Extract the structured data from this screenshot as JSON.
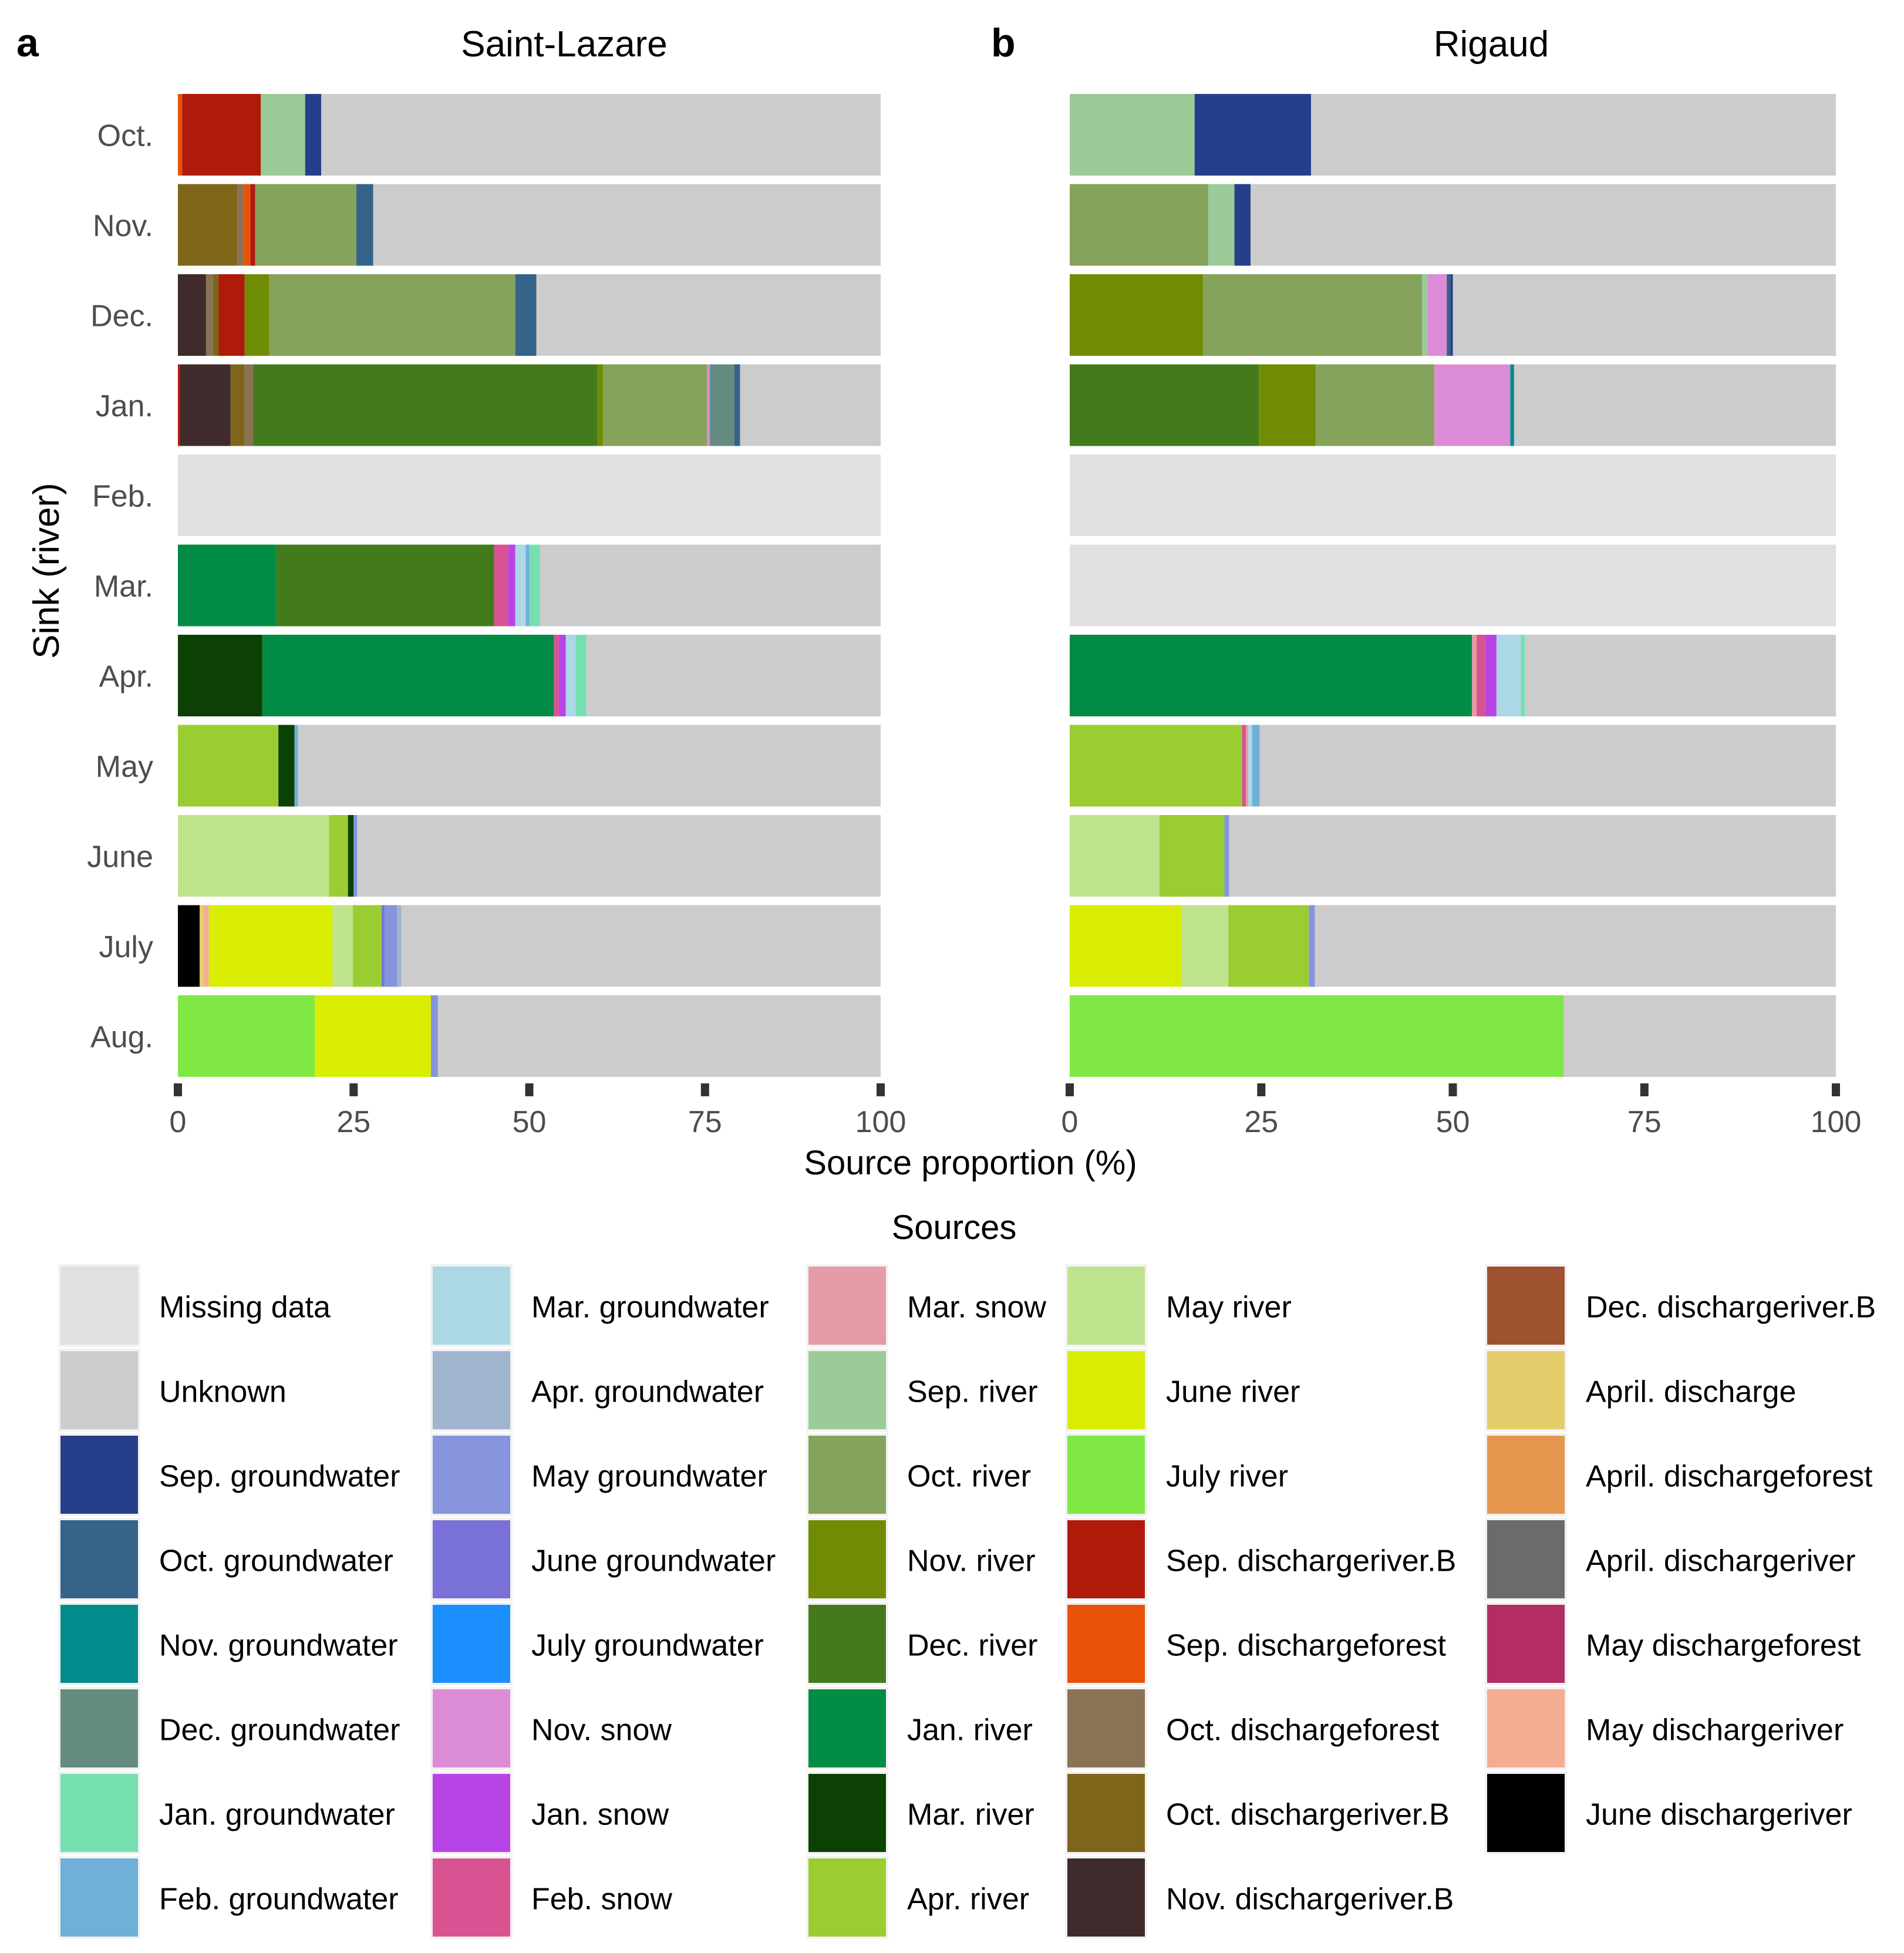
{
  "chart_data": [
    {
      "type": "bar",
      "orientation": "horizontal-stacked",
      "panel": "a",
      "title": "Saint-Lazare",
      "xlabel": "Source proportion (%)",
      "ylabel": "Sink (river)",
      "xlim": [
        0,
        100
      ],
      "xticks": [
        "0",
        "25",
        "50",
        "75",
        "100"
      ],
      "categories": [
        "Oct.",
        "Nov.",
        "Dec.",
        "Jan.",
        "Feb.",
        "Mar.",
        "Apr.",
        "May",
        "June",
        "July",
        "Aug."
      ],
      "rows": [
        {
          "sink": "Oct.",
          "segments": [
            [
              "Sep. dischargeforest",
              0.6
            ],
            [
              "Sep. dischargeriver.B",
              11.2
            ],
            [
              "Sep. river",
              6.3
            ],
            [
              "Sep. groundwater",
              2.3
            ],
            [
              "Unknown",
              79.6
            ]
          ]
        },
        {
          "sink": "Nov.",
          "segments": [
            [
              "Oct. dischargeriver.B",
              8.5
            ],
            [
              "Oct. dischargeforest",
              0.8
            ],
            [
              "Sep. dischargeforest",
              1.0
            ],
            [
              "Sep. dischargeriver.B",
              0.7
            ],
            [
              "Oct. river",
              14.4
            ],
            [
              "Oct. groundwater",
              2.4
            ],
            [
              "Unknown",
              72.2
            ]
          ]
        },
        {
          "sink": "Dec.",
          "segments": [
            [
              "Nov. dischargeriver.B",
              4.0
            ],
            [
              "Oct. dischargeforest",
              1.0
            ],
            [
              "Oct. dischargeriver.B",
              0.8
            ],
            [
              "Sep. dischargeriver.B",
              3.7
            ],
            [
              "Nov. river",
              3.5
            ],
            [
              "Oct. river",
              35.0
            ],
            [
              "Oct. groundwater",
              3.0
            ],
            [
              "Unknown",
              49.0
            ]
          ]
        },
        {
          "sink": "Jan.",
          "segments": [
            [
              "Sep. dischargeriver.B",
              0.3
            ],
            [
              "Nov. dischargeriver.B",
              7.2
            ],
            [
              "Oct. dischargeriver.B",
              2.0
            ],
            [
              "Oct. dischargeforest",
              1.2
            ],
            [
              "Dec. river",
              49.0
            ],
            [
              "Nov. river",
              0.8
            ],
            [
              "Oct. river",
              14.8
            ],
            [
              "Nov. snow",
              0.4
            ],
            [
              "Dec. groundwater",
              3.5
            ],
            [
              "Oct. groundwater",
              0.8
            ],
            [
              "Unknown",
              20.0
            ]
          ]
        },
        {
          "sink": "Feb.",
          "segments": [
            [
              "Missing data",
              100
            ]
          ]
        },
        {
          "sink": "Mar.",
          "segments": [
            [
              "Jan. river",
              14.0
            ],
            [
              "Dec. river",
              31.0
            ],
            [
              "Feb. snow",
              2.0
            ],
            [
              "Jan. snow",
              1.0
            ],
            [
              "Mar. groundwater",
              1.5
            ],
            [
              "Feb. groundwater",
              0.5
            ],
            [
              "Jan. groundwater",
              1.5
            ],
            [
              "Unknown",
              48.5
            ]
          ]
        },
        {
          "sink": "Apr.",
          "segments": [
            [
              "Mar. river",
              12.0
            ],
            [
              "Jan. river",
              41.5
            ],
            [
              "Feb. snow",
              0.7
            ],
            [
              "Jan. snow",
              1.0
            ],
            [
              "Mar. groundwater",
              1.4
            ],
            [
              "Jan. groundwater",
              1.5
            ],
            [
              "Unknown",
              41.9
            ]
          ]
        },
        {
          "sink": "May",
          "segments": [
            [
              "Apr. river",
              14.3
            ],
            [
              "Mar. river",
              2.3
            ],
            [
              "Feb. groundwater",
              0.5
            ],
            [
              "Unknown",
              82.9
            ]
          ]
        },
        {
          "sink": "June",
          "segments": [
            [
              "May river",
              21.5
            ],
            [
              "Apr. river",
              2.7
            ],
            [
              "Mar. river",
              0.8
            ],
            [
              "May groundwater",
              0.5
            ],
            [
              "Unknown",
              74.5
            ]
          ]
        },
        {
          "sink": "July",
          "segments": [
            [
              "June dischargeriver",
              3.1
            ],
            [
              "April. discharge",
              0.6
            ],
            [
              "May dischargeriver",
              0.7
            ],
            [
              "June river",
              17.6
            ],
            [
              "May river",
              2.9
            ],
            [
              "Apr. river",
              4.1
            ],
            [
              "June groundwater",
              0.4
            ],
            [
              "May groundwater",
              1.8
            ],
            [
              "Apr. groundwater",
              0.6
            ],
            [
              "Unknown",
              68.2
            ]
          ]
        },
        {
          "sink": "Aug.",
          "segments": [
            [
              "July river",
              19.5
            ],
            [
              "June river",
              16.5
            ],
            [
              "May groundwater",
              1.0
            ],
            [
              "Unknown",
              63.0
            ]
          ]
        }
      ]
    },
    {
      "type": "bar",
      "orientation": "horizontal-stacked",
      "panel": "b",
      "title": "Rigaud",
      "xlabel": "Source proportion (%)",
      "ylabel": "Sink (river)",
      "xlim": [
        0,
        100
      ],
      "xticks": [
        "0",
        "25",
        "50",
        "75",
        "100"
      ],
      "categories": [
        "Oct.",
        "Nov.",
        "Dec.",
        "Jan.",
        "Feb.",
        "Mar.",
        "Apr.",
        "May",
        "June",
        "July",
        "Aug."
      ],
      "rows": [
        {
          "sink": "Oct.",
          "segments": [
            [
              "Sep. river",
              16.3
            ],
            [
              "Sep. groundwater",
              15.2
            ],
            [
              "Unknown",
              68.5
            ]
          ]
        },
        {
          "sink": "Nov.",
          "segments": [
            [
              "Oct. river",
              18.1
            ],
            [
              "Sep. river",
              3.4
            ],
            [
              "Sep. groundwater",
              2.1
            ],
            [
              "Unknown",
              76.4
            ]
          ]
        },
        {
          "sink": "Dec.",
          "segments": [
            [
              "Nov. river",
              17.4
            ],
            [
              "Oct. river",
              28.6
            ],
            [
              "Sep. river",
              0.7
            ],
            [
              "Nov. snow",
              2.5
            ],
            [
              "Oct. groundwater",
              0.5
            ],
            [
              "Sep. groundwater",
              0.3
            ],
            [
              "Unknown",
              50.0
            ]
          ]
        },
        {
          "sink": "Jan.",
          "segments": [
            [
              "Dec. river",
              24.7
            ],
            [
              "Nov. river",
              7.4
            ],
            [
              "Oct. river",
              15.5
            ],
            [
              "Nov. snow",
              9.9
            ],
            [
              "Nov. groundwater",
              0.5
            ],
            [
              "Unknown",
              42.0
            ]
          ]
        },
        {
          "sink": "Feb.",
          "segments": [
            [
              "Missing data",
              100
            ]
          ]
        },
        {
          "sink": "Mar.",
          "segments": [
            [
              "Missing data",
              100
            ]
          ]
        },
        {
          "sink": "Apr.",
          "segments": [
            [
              "Jan. river",
              52.5
            ],
            [
              "Mar. snow",
              0.6
            ],
            [
              "Feb. snow",
              1.2
            ],
            [
              "Jan. snow",
              1.4
            ],
            [
              "Mar. groundwater",
              3.2
            ],
            [
              "Jan. groundwater",
              0.5
            ],
            [
              "Unknown",
              40.6
            ]
          ]
        },
        {
          "sink": "May",
          "segments": [
            [
              "Apr. river",
              22.5
            ],
            [
              "Feb. snow",
              0.5
            ],
            [
              "Mar. snow",
              0.3
            ],
            [
              "Mar. groundwater",
              0.5
            ],
            [
              "Feb. groundwater",
              1.0
            ],
            [
              "Unknown",
              75.2
            ]
          ]
        },
        {
          "sink": "June",
          "segments": [
            [
              "May river",
              11.7
            ],
            [
              "Apr. river",
              8.5
            ],
            [
              "May groundwater",
              0.6
            ],
            [
              "Unknown",
              79.2
            ]
          ]
        },
        {
          "sink": "July",
          "segments": [
            [
              "June river",
              14.6
            ],
            [
              "May river",
              6.1
            ],
            [
              "Apr. river",
              10.5
            ],
            [
              "May groundwater",
              0.8
            ],
            [
              "Unknown",
              68.0
            ]
          ]
        },
        {
          "sink": "Aug.",
          "segments": [
            [
              "July river",
              64.5
            ],
            [
              "Unknown",
              35.5
            ]
          ]
        }
      ]
    }
  ],
  "panel_labels": {
    "a": "a",
    "b": "b"
  },
  "legend": {
    "title": "Sources",
    "columns": [
      [
        {
          "label": "Missing data",
          "color": "#e0e0e0"
        },
        {
          "label": "Unknown",
          "color": "#cccccc"
        },
        {
          "label": "Sep. groundwater",
          "color": "#273e8a"
        },
        {
          "label": "Oct. groundwater",
          "color": "#36638a"
        },
        {
          "label": "Nov. groundwater",
          "color": "#028b8a"
        },
        {
          "label": "Dec. groundwater",
          "color": "#658b80"
        },
        {
          "label": "Jan. groundwater",
          "color": "#76dfb0"
        },
        {
          "label": "Feb. groundwater",
          "color": "#6fb0d8"
        }
      ],
      [
        {
          "label": "Mar. groundwater",
          "color": "#acd8e6"
        },
        {
          "label": "Apr. groundwater",
          "color": "#9fb4cd"
        },
        {
          "label": "May groundwater",
          "color": "#8694de"
        },
        {
          "label": "June groundwater",
          "color": "#7970d8"
        },
        {
          "label": "July groundwater",
          "color": "#1c8ffe"
        },
        {
          "label": "Nov. snow",
          "color": "#dc8cd6"
        },
        {
          "label": "Jan. snow",
          "color": "#b745e6"
        },
        {
          "label": "Feb. snow",
          "color": "#d95393"
        }
      ],
      [
        {
          "label": "Mar. snow",
          "color": "#e39ba6"
        },
        {
          "label": "Sep. river",
          "color": "#9acb98"
        },
        {
          "label": "Oct. river",
          "color": "#86a35c"
        },
        {
          "label": "Nov. river",
          "color": "#708c04"
        },
        {
          "label": "Dec. river",
          "color": "#437b1c"
        },
        {
          "label": "Jan. river",
          "color": "#028b45"
        },
        {
          "label": "Mar. river",
          "color": "#0b4103"
        },
        {
          "label": "Apr. river",
          "color": "#9acd32"
        }
      ],
      [
        {
          "label": "May river",
          "color": "#c0e48e"
        },
        {
          "label": "June river",
          "color": "#d8ed02"
        },
        {
          "label": "July river",
          "color": "#80e845"
        },
        {
          "label": "Sep. dischargeriver.B",
          "color": "#b01a0a"
        },
        {
          "label": "Sep. dischargeforest",
          "color": "#e85209"
        },
        {
          "label": "Oct. dischargeforest",
          "color": "#8a7355"
        },
        {
          "label": "Oct. dischargeriver.B",
          "color": "#7f6519"
        },
        {
          "label": "Nov. dischargeriver.B",
          "color": "#3f2b2b"
        }
      ],
      [
        {
          "label": "Dec. dischargeriver.B",
          "color": "#9e522f"
        },
        {
          "label": "April. discharge",
          "color": "#e3cc6a"
        },
        {
          "label": "April. dischargeforest",
          "color": "#e5964f"
        },
        {
          "label": "April. dischargeriver",
          "color": "#6b6b6b"
        },
        {
          "label": "May dischargeforest",
          "color": "#b32c64"
        },
        {
          "label": "May dischargeriver",
          "color": "#f4ad92"
        },
        {
          "label": "June dischargeriver",
          "color": "#000000"
        }
      ]
    ]
  }
}
